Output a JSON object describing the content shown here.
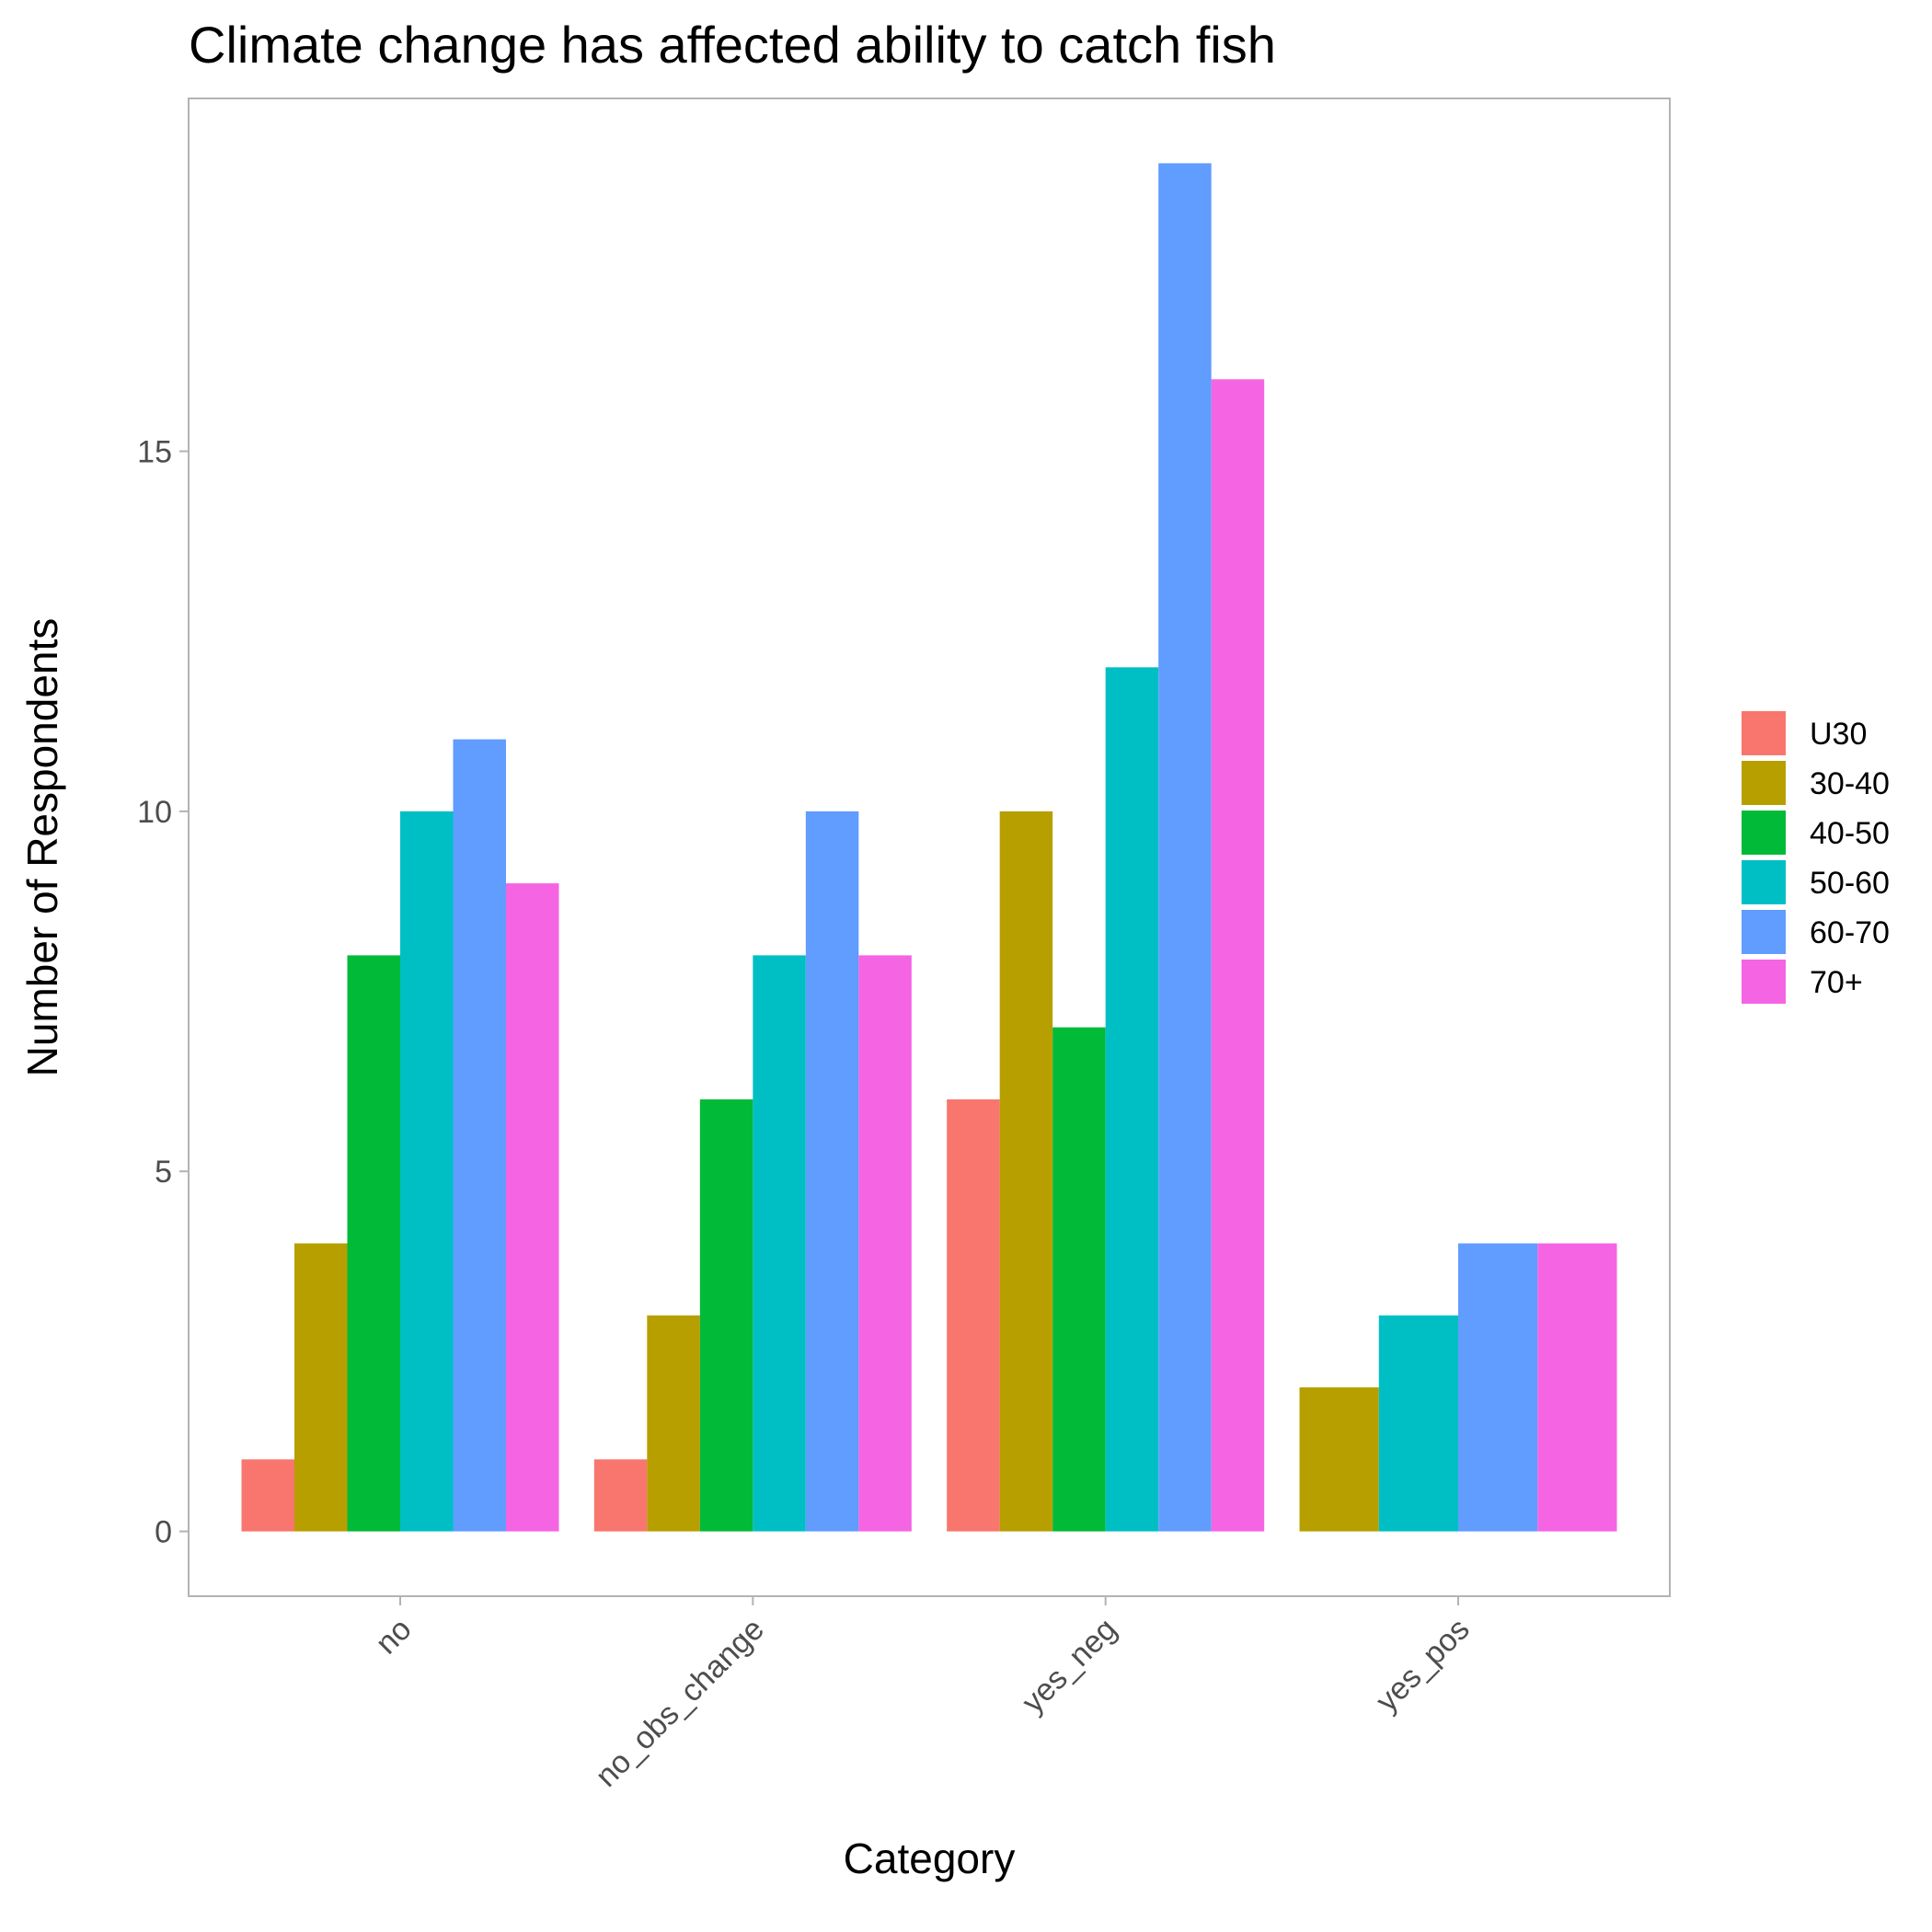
{
  "chart_data": {
    "type": "bar",
    "title": "Climate change has affected ability to catch fish",
    "xlabel": "Category",
    "ylabel": "Number of Respondents",
    "categories": [
      "no",
      "no_obs_change",
      "yes_neg",
      "yes_pos"
    ],
    "yticks": [
      0,
      5,
      10,
      15
    ],
    "ylim": [
      -0.9,
      19.9
    ],
    "grid": false,
    "legend_position": "right",
    "series": [
      {
        "name": "U30",
        "color": "#F8766D",
        "values": [
          1,
          1,
          6,
          0
        ]
      },
      {
        "name": "30-40",
        "color": "#B79F00",
        "values": [
          4,
          3,
          10,
          2
        ]
      },
      {
        "name": "40-50",
        "color": "#00BA38",
        "values": [
          8,
          6,
          7,
          0
        ]
      },
      {
        "name": "50-60",
        "color": "#00BFC4",
        "values": [
          10,
          8,
          12,
          3
        ]
      },
      {
        "name": "60-70",
        "color": "#619CFF",
        "values": [
          11,
          10,
          19,
          4
        ]
      },
      {
        "name": "70+",
        "color": "#F564E3",
        "values": [
          9,
          8,
          16,
          4
        ]
      }
    ]
  }
}
